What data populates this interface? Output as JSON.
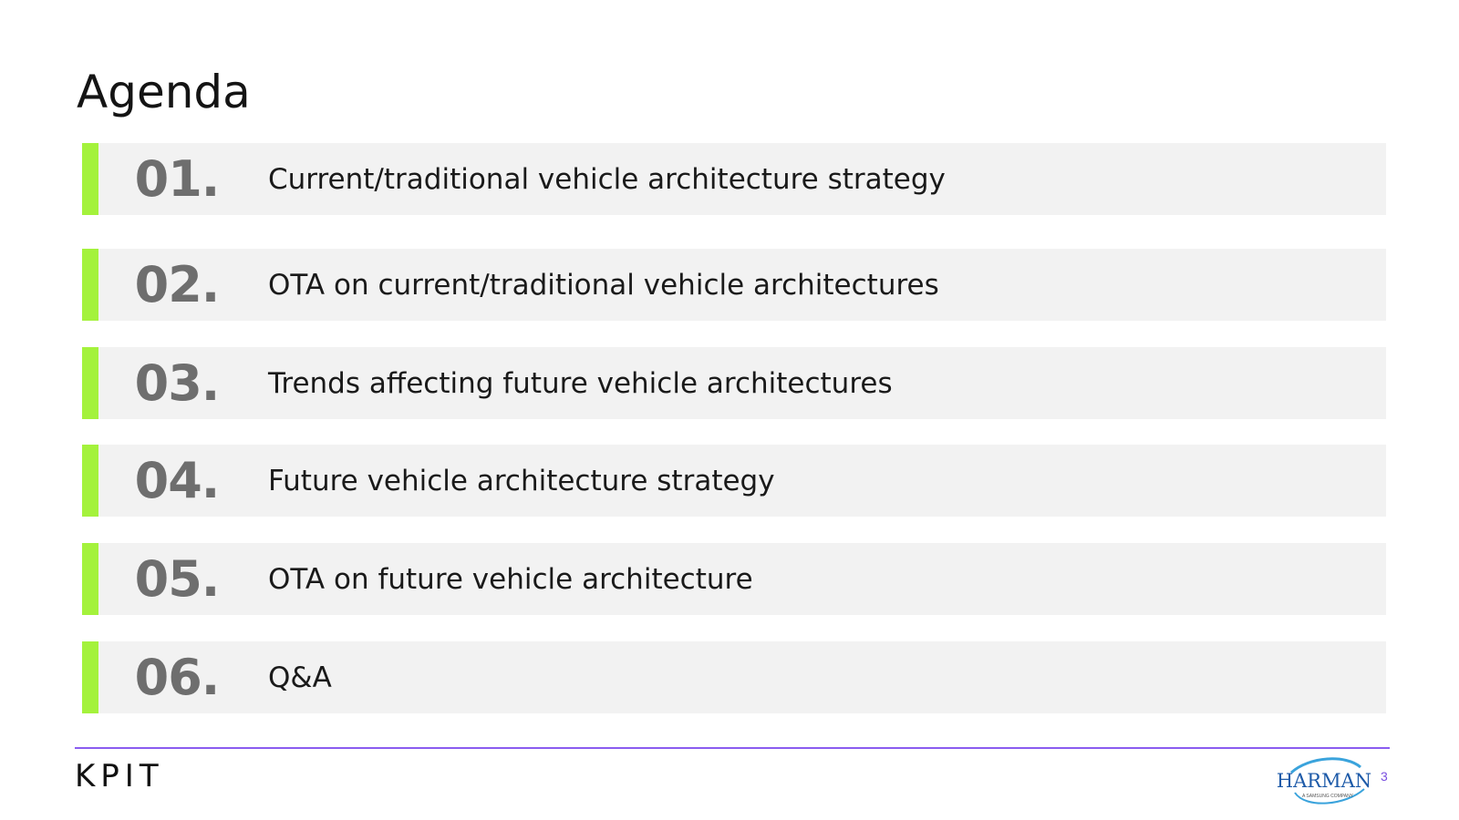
{
  "slide": {
    "title": "Agenda",
    "page_number": "3"
  },
  "agenda": {
    "items": [
      {
        "number": "01.",
        "text": "Current/traditional vehicle architecture strategy"
      },
      {
        "number": "02.",
        "text": "OTA on current/traditional vehicle architectures"
      },
      {
        "number": "03.",
        "text": "Trends affecting future vehicle architectures"
      },
      {
        "number": "04.",
        "text": "Future vehicle architecture strategy"
      },
      {
        "number": "05.",
        "text": "OTA on future vehicle architecture"
      },
      {
        "number": "06.",
        "text": "Q&A"
      }
    ]
  },
  "footer": {
    "left_logo": {
      "icon": "kpit-logo",
      "text": "KPIT"
    },
    "right_logo": {
      "icon": "harman-logo",
      "text": "HARMAN",
      "subtext": "A SAMSUNG COMPANY"
    }
  },
  "colors": {
    "accent_bar": "#a4f23c",
    "row_background": "#f2f2f2",
    "footer_line": "#8a5cf0",
    "page_number": "#7a4fe0",
    "harman_blue": "#1d5aa8",
    "harman_swoosh": "#3aa3dc"
  }
}
